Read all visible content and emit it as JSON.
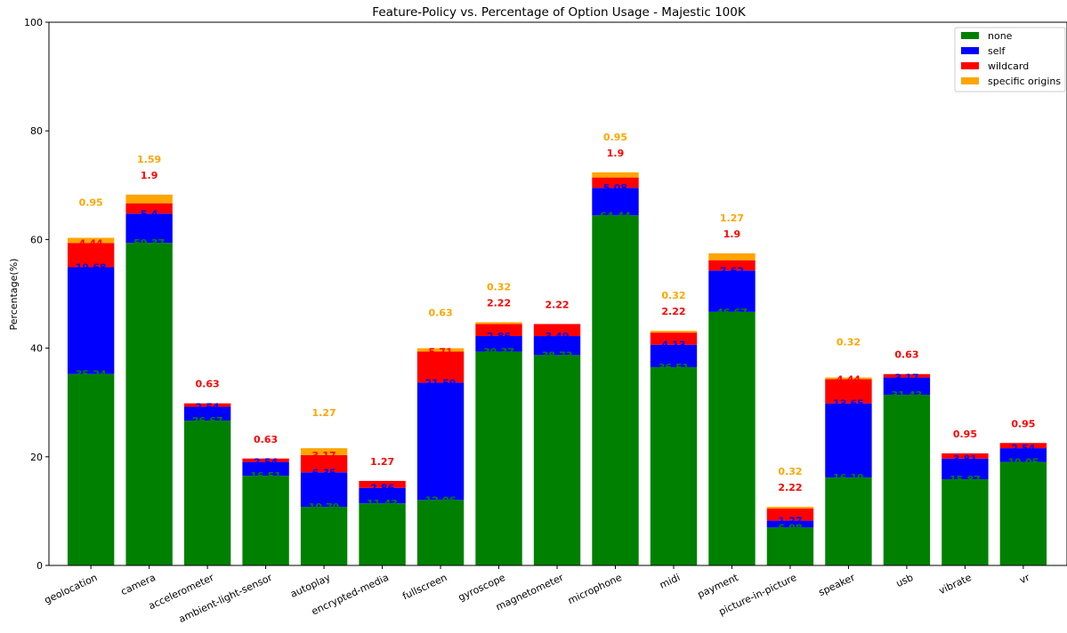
{
  "chart_data": {
    "type": "bar",
    "stacked": true,
    "title": "Feature-Policy vs. Percentage of Option Usage - Majestic 100K",
    "xlabel": "",
    "ylabel": "Percentage(%)",
    "ylim": [
      0,
      100
    ],
    "yticks": [
      "0",
      "20",
      "40",
      "60",
      "80",
      "100"
    ],
    "legend_position": "top-right",
    "categories": [
      "geolocation",
      "camera",
      "accelerometer",
      "ambient-light-sensor",
      "autoplay",
      "encrypted-media",
      "fullscreen",
      "gyroscope",
      "magnetometer",
      "microphone",
      "midi",
      "payment",
      "picture-in-picture",
      "speaker",
      "usb",
      "vibrate",
      "vr"
    ],
    "series": [
      {
        "name": "none",
        "color": "#008000",
        "values": [
          35.24,
          59.37,
          26.67,
          16.51,
          10.79,
          11.43,
          12.06,
          39.37,
          38.73,
          64.44,
          36.51,
          46.67,
          6.98,
          16.19,
          31.43,
          15.87,
          19.05
        ]
      },
      {
        "name": "self",
        "color": "#0000ff",
        "values": [
          19.68,
          5.4,
          2.54,
          2.54,
          6.35,
          2.86,
          21.59,
          2.86,
          3.49,
          5.08,
          4.13,
          7.62,
          1.27,
          13.65,
          3.17,
          3.81,
          2.54
        ]
      },
      {
        "name": "wildcard",
        "color": "#ff0000",
        "values": [
          4.44,
          1.9,
          0.63,
          0.63,
          3.17,
          1.27,
          5.71,
          2.22,
          2.22,
          1.9,
          2.22,
          1.9,
          2.22,
          4.44,
          0.63,
          0.95,
          0.95
        ]
      },
      {
        "name": "specific origins",
        "color": "#ffa500",
        "values": [
          0.95,
          1.59,
          0,
          0,
          1.27,
          0,
          0.63,
          0.32,
          0,
          0.95,
          0.32,
          1.27,
          0.32,
          0.32,
          0,
          0,
          0
        ]
      }
    ],
    "data_labels": [
      [
        {
          "s": 0,
          "t": "35.24"
        },
        {
          "s": 1,
          "t": "19.68"
        },
        {
          "s": 2,
          "t": "4.44"
        },
        {
          "s": 3,
          "t": "0.95"
        }
      ],
      [
        {
          "s": 0,
          "t": "59.37"
        },
        {
          "s": 1,
          "t": "5.4"
        },
        {
          "s": 2,
          "t": "1.9"
        },
        {
          "s": 3,
          "t": "1.59"
        }
      ],
      [
        {
          "s": 0,
          "t": "26.67"
        },
        {
          "s": 1,
          "t": "2.54"
        },
        {
          "s": 2,
          "t": "0.63"
        }
      ],
      [
        {
          "s": 0,
          "t": "16.51"
        },
        {
          "s": 1,
          "t": "2.54"
        },
        {
          "s": 2,
          "t": "0.63"
        }
      ],
      [
        {
          "s": 0,
          "t": "10.79"
        },
        {
          "s": 1,
          "t": "6.35"
        },
        {
          "s": 2,
          "t": "3.17"
        },
        {
          "s": 3,
          "t": "1.27"
        }
      ],
      [
        {
          "s": 0,
          "t": "11.43"
        },
        {
          "s": 1,
          "t": "2.86"
        },
        {
          "s": 2,
          "t": "1.27"
        }
      ],
      [
        {
          "s": 0,
          "t": "12.06"
        },
        {
          "s": 1,
          "t": "21.59"
        },
        {
          "s": 2,
          "t": "5.71"
        },
        {
          "s": 3,
          "t": "0.63"
        }
      ],
      [
        {
          "s": 0,
          "t": "39.37"
        },
        {
          "s": 1,
          "t": "2.86"
        },
        {
          "s": 2,
          "t": "2.22"
        },
        {
          "s": 3,
          "t": "0.32"
        }
      ],
      [
        {
          "s": 0,
          "t": "38.73"
        },
        {
          "s": 1,
          "t": "3.49"
        },
        {
          "s": 2,
          "t": "2.22"
        }
      ],
      [
        {
          "s": 0,
          "t": "64.44"
        },
        {
          "s": 1,
          "t": "5.08"
        },
        {
          "s": 2,
          "t": "1.9"
        },
        {
          "s": 3,
          "t": "0.95"
        }
      ],
      [
        {
          "s": 0,
          "t": "36.51"
        },
        {
          "s": 1,
          "t": "4.13"
        },
        {
          "s": 2,
          "t": "2.22"
        },
        {
          "s": 3,
          "t": "0.32"
        }
      ],
      [
        {
          "s": 0,
          "t": "46.67"
        },
        {
          "s": 1,
          "t": "7.62"
        },
        {
          "s": 2,
          "t": "1.9"
        },
        {
          "s": 3,
          "t": "1.27"
        }
      ],
      [
        {
          "s": 0,
          "t": "6.98"
        },
        {
          "s": 1,
          "t": "1.27"
        },
        {
          "s": 2,
          "t": "2.22"
        },
        {
          "s": 3,
          "t": "0.32"
        }
      ],
      [
        {
          "s": 0,
          "t": "16.19"
        },
        {
          "s": 1,
          "t": "13.65"
        },
        {
          "s": 2,
          "t": "4.44"
        },
        {
          "s": 3,
          "t": "0.32"
        }
      ],
      [
        {
          "s": 0,
          "t": "31.43"
        },
        {
          "s": 1,
          "t": "3.17"
        },
        {
          "s": 2,
          "t": "0.63"
        }
      ],
      [
        {
          "s": 0,
          "t": "15.87"
        },
        {
          "s": 1,
          "t": "3.81"
        },
        {
          "s": 2,
          "t": "0.95"
        }
      ],
      [
        {
          "s": 0,
          "t": "19.05"
        },
        {
          "s": 1,
          "t": "2.54"
        },
        {
          "s": 2,
          "t": "0.95"
        }
      ]
    ],
    "grid": false
  }
}
